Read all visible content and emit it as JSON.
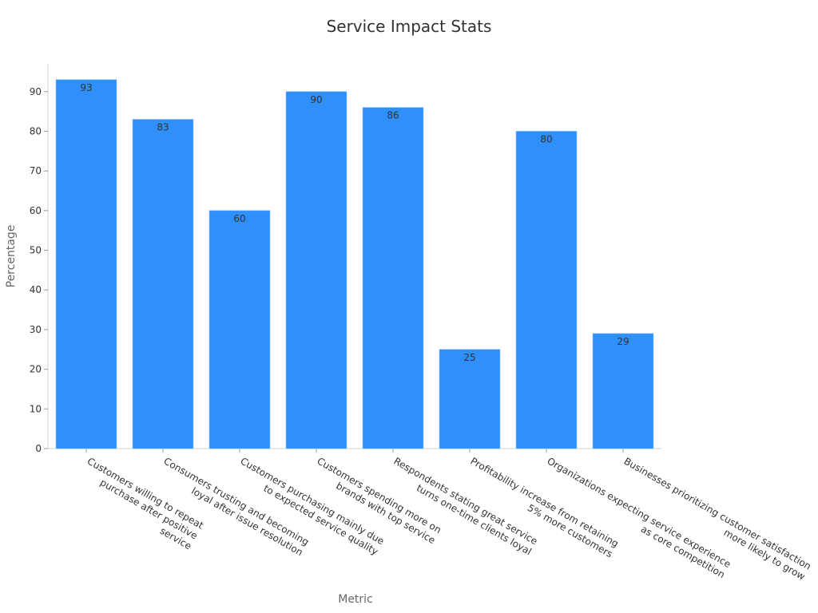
{
  "chart_data": {
    "type": "bar",
    "title": "Service Impact Stats",
    "xlabel": "Metric",
    "ylabel": "Percentage",
    "ylim": [
      0,
      97
    ],
    "yticks": [
      0,
      10,
      20,
      30,
      40,
      50,
      60,
      70,
      80,
      90
    ],
    "grid": false,
    "bar_color": "#2e90f8",
    "categories": [
      [
        "Customers willing to repeat",
        "purchase after positive",
        "service"
      ],
      [
        "Consumers trusting and becoming",
        "loyal after issue resolution"
      ],
      [
        "Customers purchasing mainly due",
        "to expected service quality"
      ],
      [
        "Customers spending more on",
        "brands with top service"
      ],
      [
        "Respondents stating great service",
        "turns one-time clients loyal"
      ],
      [
        "Profitability increase from retaining",
        "5% more customers"
      ],
      [
        "Organizations expecting service experience",
        "as core competition"
      ],
      [
        "Businesses prioritizing customer satisfaction",
        "more likely to grow"
      ]
    ],
    "values": [
      93,
      83,
      60,
      90,
      86,
      25,
      80,
      29
    ]
  }
}
